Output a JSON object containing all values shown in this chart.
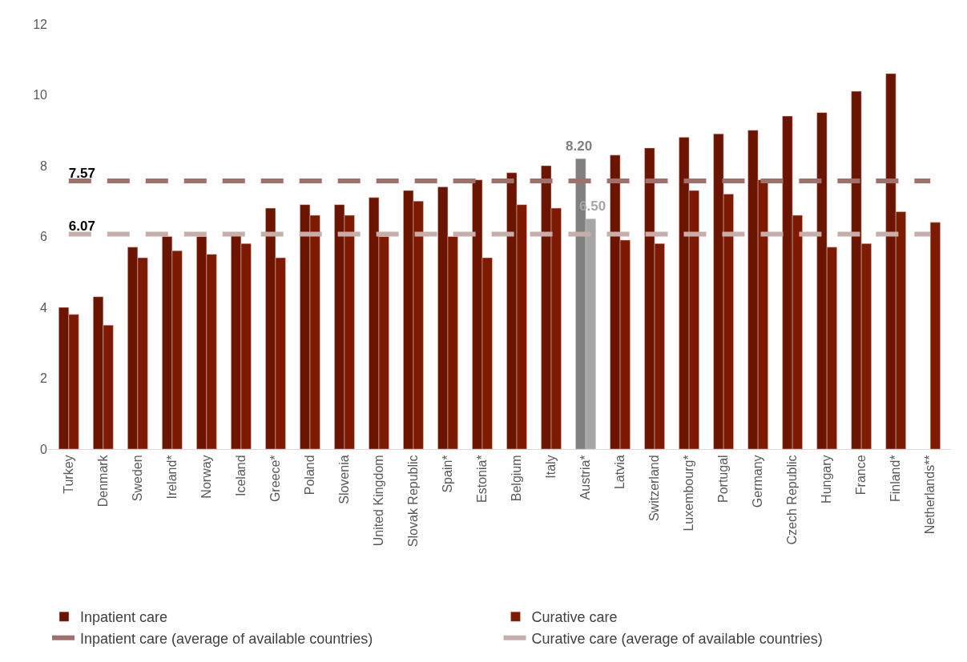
{
  "chart_data": {
    "type": "bar",
    "categories": [
      "Turkey",
      "Denmark",
      "Sweden",
      "Ireland*",
      "Norway",
      "Iceland",
      "Greece*",
      "Poland",
      "Slovenia",
      "United Kingdom",
      "Slovak Republic",
      "Spain*",
      "Estonia*",
      "Belgium",
      "Italy",
      "Austria*",
      "Latvia",
      "Switzerland",
      "Luxembourg*",
      "Portugal",
      "Germany",
      "Czech Republic",
      "Hungary",
      "France",
      "Finland*",
      "Netherlands**"
    ],
    "series": [
      {
        "name": "Inpatient care",
        "color": "#6b1400",
        "colors": [
          "#6b1400",
          "#6b1400",
          "#6b1400",
          "#6b1400",
          "#6b1400",
          "#6b1400",
          "#6b1400",
          "#6b1400",
          "#6b1400",
          "#6b1400",
          "#6b1400",
          "#6b1400",
          "#6b1400",
          "#6b1400",
          "#6b1400",
          "#808080",
          "#6b1400",
          "#6b1400",
          "#6b1400",
          "#6b1400",
          "#6b1400",
          "#6b1400",
          "#6b1400",
          "#6b1400",
          "#6b1400",
          "#6b1400"
        ],
        "values": [
          4.0,
          4.3,
          5.7,
          6.0,
          6.0,
          6.1,
          6.8,
          6.9,
          6.9,
          7.1,
          7.3,
          7.4,
          7.6,
          7.8,
          8.0,
          8.2,
          8.3,
          8.5,
          8.8,
          8.9,
          9.0,
          9.4,
          9.5,
          10.1,
          10.6,
          null
        ],
        "value_labels": [
          null,
          null,
          null,
          null,
          null,
          null,
          null,
          null,
          null,
          null,
          null,
          null,
          null,
          null,
          null,
          "8.20",
          null,
          null,
          null,
          null,
          null,
          null,
          null,
          null,
          null,
          null
        ]
      },
      {
        "name": "Curative care",
        "color": "#7e1a02",
        "colors": [
          "#7e1a02",
          "#7e1a02",
          "#7e1a02",
          "#7e1a02",
          "#7e1a02",
          "#7e1a02",
          "#7e1a02",
          "#7e1a02",
          "#7e1a02",
          "#7e1a02",
          "#7e1a02",
          "#7e1a02",
          "#7e1a02",
          "#7e1a02",
          "#7e1a02",
          "#a6a6a6",
          "#7e1a02",
          "#7e1a02",
          "#7e1a02",
          "#7e1a02",
          "#7e1a02",
          "#7e1a02",
          "#7e1a02",
          "#7e1a02",
          "#7e1a02",
          "#7e1a02"
        ],
        "values": [
          3.8,
          3.5,
          5.4,
          5.6,
          5.5,
          5.8,
          5.4,
          6.6,
          6.6,
          6.0,
          7.0,
          6.0,
          5.4,
          6.9,
          6.8,
          6.5,
          5.9,
          5.8,
          7.3,
          7.2,
          7.6,
          6.6,
          5.7,
          5.8,
          6.7,
          6.4
        ],
        "value_labels": [
          null,
          null,
          null,
          null,
          null,
          null,
          null,
          null,
          null,
          null,
          null,
          null,
          null,
          null,
          null,
          "6.50",
          null,
          null,
          null,
          null,
          null,
          null,
          null,
          null,
          null,
          null
        ]
      },
      {
        "name": "Inpatient care (average of available countries)",
        "type": "line",
        "color": "#a0706a",
        "line_style": "dashed",
        "values": [
          7.57,
          7.57,
          7.57,
          7.57,
          7.57,
          7.57,
          7.57,
          7.57,
          7.57,
          7.57,
          7.57,
          7.57,
          7.57,
          7.57,
          7.57,
          7.57,
          7.57,
          7.57,
          7.57,
          7.57,
          7.57,
          7.57,
          7.57,
          7.57,
          7.57,
          7.57
        ],
        "value_labels": [
          "7.57",
          null,
          null,
          null,
          null,
          null,
          null,
          null,
          null,
          null,
          null,
          null,
          null,
          null,
          null,
          null,
          null,
          null,
          null,
          null,
          null,
          null,
          null,
          null,
          null,
          null
        ]
      },
      {
        "name": "Curative care (average of available countries)",
        "type": "line",
        "color": "#c8aeaa",
        "line_style": "dashed",
        "values": [
          6.07,
          6.07,
          6.07,
          6.07,
          6.07,
          6.07,
          6.07,
          6.07,
          6.07,
          6.07,
          6.07,
          6.07,
          6.07,
          6.07,
          6.07,
          6.07,
          6.07,
          6.07,
          6.07,
          6.07,
          6.07,
          6.07,
          6.07,
          6.07,
          6.07,
          6.07
        ],
        "value_labels": [
          "6.07",
          null,
          null,
          null,
          null,
          null,
          null,
          null,
          null,
          null,
          null,
          null,
          null,
          null,
          null,
          null,
          null,
          null,
          null,
          null,
          null,
          null,
          null,
          null,
          null,
          null
        ]
      }
    ],
    "ylim": [
      0,
      12
    ],
    "yticks": [
      0,
      2,
      4,
      6,
      8,
      10,
      12
    ],
    "grid": false,
    "legend": "bottom",
    "marker": "none"
  }
}
